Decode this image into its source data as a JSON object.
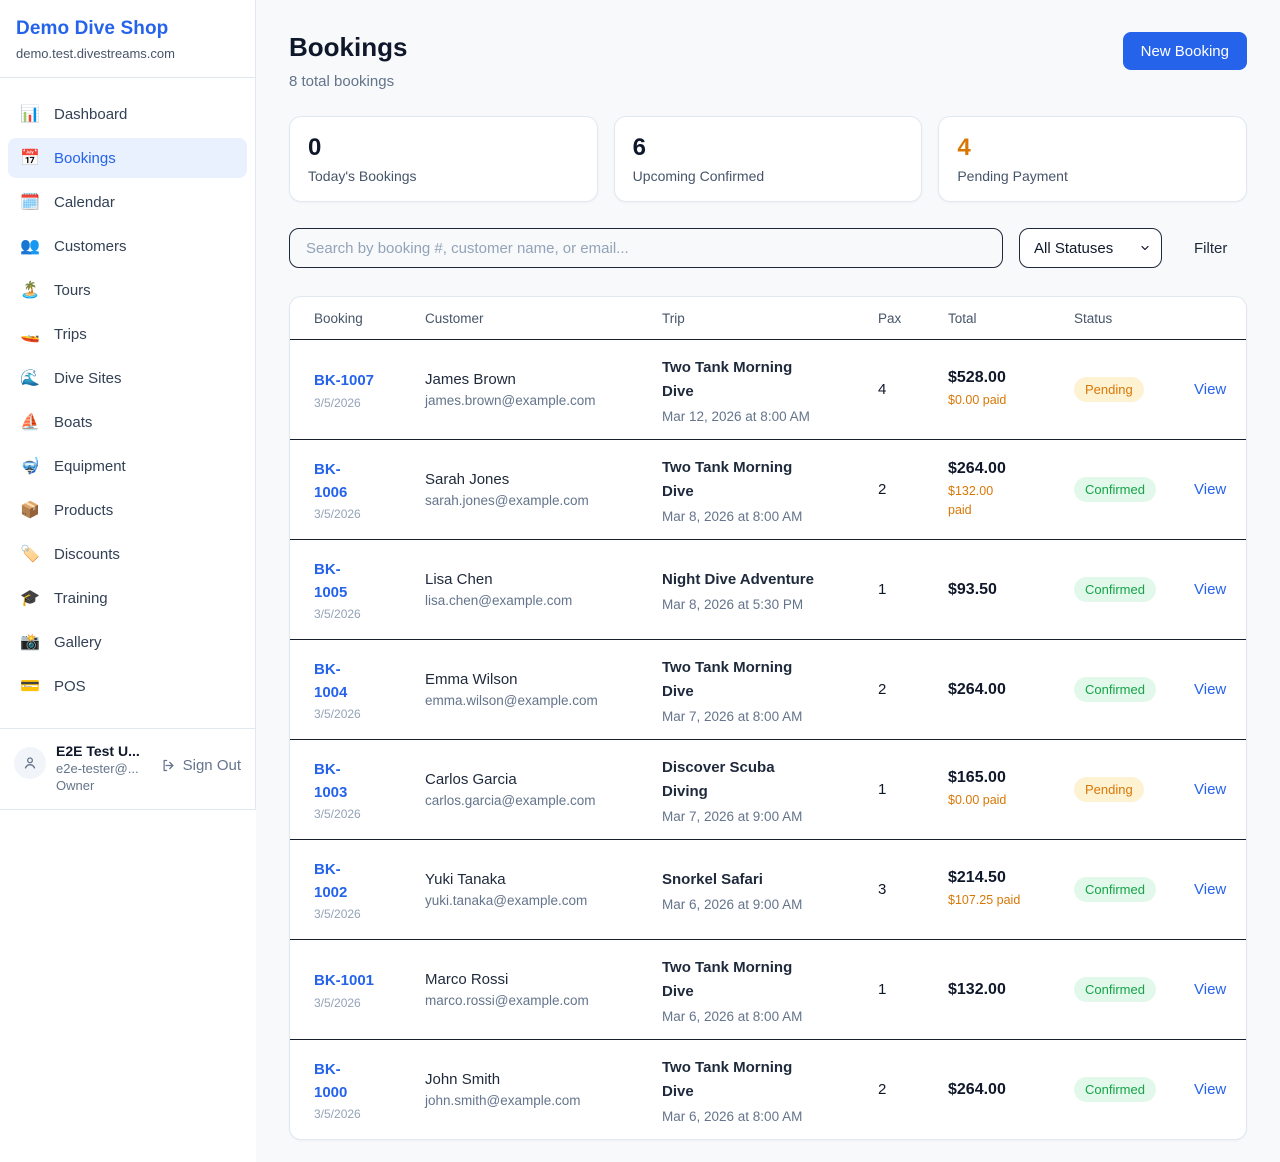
{
  "sidebar": {
    "brand": {
      "name": "Demo Dive Shop",
      "domain": "demo.test.divestreams.com"
    },
    "nav": [
      {
        "label": "Dashboard",
        "icon": "📊",
        "active": false
      },
      {
        "label": "Bookings",
        "icon": "📅",
        "active": true
      },
      {
        "label": "Calendar",
        "icon": "🗓️",
        "active": false
      },
      {
        "label": "Customers",
        "icon": "👥",
        "active": false
      },
      {
        "label": "Tours",
        "icon": "🏝️",
        "active": false
      },
      {
        "label": "Trips",
        "icon": "🚤",
        "active": false
      },
      {
        "label": "Dive Sites",
        "icon": "🌊",
        "active": false
      },
      {
        "label": "Boats",
        "icon": "⛵",
        "active": false
      },
      {
        "label": "Equipment",
        "icon": "🤿",
        "active": false
      },
      {
        "label": "Products",
        "icon": "📦",
        "active": false
      },
      {
        "label": "Discounts",
        "icon": "🏷️",
        "active": false
      },
      {
        "label": "Training",
        "icon": "🎓",
        "active": false
      },
      {
        "label": "Gallery",
        "icon": "📸",
        "active": false
      },
      {
        "label": "POS",
        "icon": "💳",
        "active": false
      }
    ],
    "user": {
      "name": "E2E Test U...",
      "email": "e2e-tester@...",
      "role": "Owner",
      "sign_out_label": "Sign Out"
    }
  },
  "header": {
    "title": "Bookings",
    "subtitle": "8 total bookings",
    "new_booking_label": "New Booking"
  },
  "stats": [
    {
      "value": "0",
      "label": "Today's Bookings",
      "color": "#0f172a"
    },
    {
      "value": "6",
      "label": "Upcoming Confirmed",
      "color": "#0f172a"
    },
    {
      "value": "4",
      "label": "Pending Payment",
      "color": "#d97706"
    }
  ],
  "filters": {
    "search_placeholder": "Search by booking #, customer name, or email...",
    "status_selected": "All Statuses",
    "filter_label": "Filter"
  },
  "table": {
    "columns": [
      "Booking",
      "Customer",
      "Trip",
      "Pax",
      "Total",
      "Status"
    ],
    "view_label": "View",
    "rows": [
      {
        "id": "BK-1007",
        "id_wrap": false,
        "date": "3/5/2026",
        "customer": "James Brown",
        "email": "james.brown@example.com",
        "trip": "Two Tank Morning Dive",
        "trip_wrap": true,
        "trip_when": "Mar 12, 2026 at 8:00 AM",
        "pax": "4",
        "total": "$528.00",
        "paid": "$0.00 paid",
        "paid_wrap": false,
        "status": "Pending"
      },
      {
        "id": "BK-1006",
        "id_wrap": true,
        "date": "3/5/2026",
        "customer": "Sarah Jones",
        "email": "sarah.jones@example.com",
        "trip": "Two Tank Morning Dive",
        "trip_wrap": true,
        "trip_when": "Mar 8, 2026 at 8:00 AM",
        "pax": "2",
        "total": "$264.00",
        "paid": "$132.00 paid",
        "paid_wrap": true,
        "status": "Confirmed"
      },
      {
        "id": "BK-1005",
        "id_wrap": true,
        "date": "3/5/2026",
        "customer": "Lisa Chen",
        "email": "lisa.chen@example.com",
        "trip": "Night Dive Adventure",
        "trip_wrap": false,
        "trip_when": "Mar 8, 2026 at 5:30 PM",
        "pax": "1",
        "total": "$93.50",
        "paid": null,
        "paid_wrap": false,
        "status": "Confirmed"
      },
      {
        "id": "BK-1004",
        "id_wrap": true,
        "date": "3/5/2026",
        "customer": "Emma Wilson",
        "email": "emma.wilson@example.com",
        "trip": "Two Tank Morning Dive",
        "trip_wrap": true,
        "trip_when": "Mar 7, 2026 at 8:00 AM",
        "pax": "2",
        "total": "$264.00",
        "paid": null,
        "paid_wrap": false,
        "status": "Confirmed"
      },
      {
        "id": "BK-1003",
        "id_wrap": true,
        "date": "3/5/2026",
        "customer": "Carlos Garcia",
        "email": "carlos.garcia@example.com",
        "trip": "Discover Scuba Diving",
        "trip_wrap": true,
        "trip_when": "Mar 7, 2026 at 9:00 AM",
        "pax": "1",
        "total": "$165.00",
        "paid": "$0.00 paid",
        "paid_wrap": false,
        "status": "Pending"
      },
      {
        "id": "BK-1002",
        "id_wrap": true,
        "date": "3/5/2026",
        "customer": "Yuki Tanaka",
        "email": "yuki.tanaka@example.com",
        "trip": "Snorkel Safari",
        "trip_wrap": false,
        "trip_when": "Mar 6, 2026 at 9:00 AM",
        "pax": "3",
        "total": "$214.50",
        "paid": "$107.25 paid",
        "paid_wrap": false,
        "status": "Confirmed"
      },
      {
        "id": "BK-1001",
        "id_wrap": false,
        "date": "3/5/2026",
        "customer": "Marco Rossi",
        "email": "marco.rossi@example.com",
        "trip": "Two Tank Morning Dive",
        "trip_wrap": true,
        "trip_when": "Mar 6, 2026 at 8:00 AM",
        "pax": "1",
        "total": "$132.00",
        "paid": null,
        "paid_wrap": false,
        "status": "Confirmed"
      },
      {
        "id": "BK-1000",
        "id_wrap": true,
        "date": "3/5/2026",
        "customer": "John Smith",
        "email": "john.smith@example.com",
        "trip": "Two Tank Morning Dive",
        "trip_wrap": true,
        "trip_when": "Mar 6, 2026 at 8:00 AM",
        "pax": "2",
        "total": "$264.00",
        "paid": null,
        "paid_wrap": false,
        "status": "Confirmed"
      }
    ]
  },
  "colors": {
    "accent_blue": "#2563eb",
    "pending_orange": "#d97706",
    "confirmed_green": "#16a34a",
    "pending_badge_bg": "#fdf3d3",
    "confirmed_badge_bg": "#e2f8ea",
    "page_bg": "#f7f9fb",
    "row_divider": "#16202e"
  }
}
